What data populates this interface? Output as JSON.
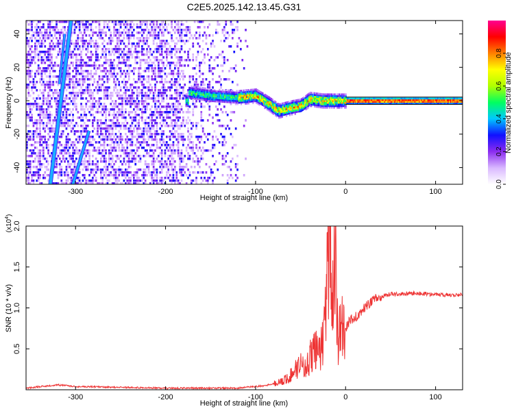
{
  "figure": {
    "title": "C2E5.2025.142.13.45.G31"
  },
  "chart_data": [
    {
      "type": "heatmap",
      "xlabel": "Height of straight line (km)",
      "ylabel": "Frequency (Hz)",
      "xlim": [
        -355,
        130
      ],
      "ylim": [
        -50,
        48
      ],
      "x_ticks": [
        -300,
        -200,
        -100,
        0,
        100
      ],
      "y_ticks": [
        -40,
        -20,
        0,
        20,
        40
      ],
      "colorbar": {
        "label": "Normalized spectral amplitude",
        "range": [
          0,
          1
        ],
        "ticks": [
          0.0,
          0.2,
          0.4,
          0.6,
          0.8
        ],
        "colors": [
          "#ffffff",
          "#d9b8ff",
          "#8b2cf0",
          "#1010ff",
          "#00c8ff",
          "#00ff60",
          "#b0ff00",
          "#ffff00",
          "#ff8000",
          "#ff0000",
          "#ff0090"
        ]
      },
      "features": {
        "diagonal_streaks_x_range_km": [
          -330,
          -290
        ],
        "central_ridge": [
          {
            "x": -175,
            "y": 5
          },
          {
            "x": -150,
            "y": 3
          },
          {
            "x": -120,
            "y": 2
          },
          {
            "x": -100,
            "y": 3
          },
          {
            "x": -85,
            "y": -2
          },
          {
            "x": -75,
            "y": -6
          },
          {
            "x": -60,
            "y": -4
          },
          {
            "x": -50,
            "y": -3
          },
          {
            "x": -40,
            "y": 1
          },
          {
            "x": -25,
            "y": 0
          },
          {
            "x": -10,
            "y": 0
          },
          {
            "x": 0,
            "y": 0
          },
          {
            "x": 130,
            "y": 0
          }
        ]
      }
    },
    {
      "type": "line",
      "xlabel": "Height of straight line (km)",
      "ylabel": "SNR (10 * v/v)",
      "y_exponent_label": "(x10",
      "y_exponent_power": "4",
      "y_exponent_close": ")",
      "xlim": [
        -355,
        130
      ],
      "ylim": [
        0,
        2.0
      ],
      "x_ticks": [
        -300,
        -200,
        -100,
        0,
        100
      ],
      "y_ticks": [
        "0.5",
        "1.0",
        "1.5",
        "2.0"
      ],
      "color": "#ee3333",
      "series_keypoints": [
        {
          "x": -355,
          "y": 0.02
        },
        {
          "x": -320,
          "y": 0.06
        },
        {
          "x": -300,
          "y": 0.04
        },
        {
          "x": -200,
          "y": 0.02
        },
        {
          "x": -120,
          "y": 0.02
        },
        {
          "x": -90,
          "y": 0.05
        },
        {
          "x": -70,
          "y": 0.1
        },
        {
          "x": -60,
          "y": 0.18
        },
        {
          "x": -50,
          "y": 0.35
        },
        {
          "x": -45,
          "y": 0.25
        },
        {
          "x": -35,
          "y": 0.5
        },
        {
          "x": -28,
          "y": 0.45
        },
        {
          "x": -22,
          "y": 0.9
        },
        {
          "x": -18,
          "y": 2.0
        },
        {
          "x": -15,
          "y": 0.8
        },
        {
          "x": -12,
          "y": 1.7
        },
        {
          "x": -8,
          "y": 0.6
        },
        {
          "x": -5,
          "y": 0.8
        },
        {
          "x": 0,
          "y": 0.75
        },
        {
          "x": 5,
          "y": 0.85
        },
        {
          "x": 15,
          "y": 0.92
        },
        {
          "x": 25,
          "y": 1.05
        },
        {
          "x": 35,
          "y": 1.12
        },
        {
          "x": 50,
          "y": 1.17
        },
        {
          "x": 80,
          "y": 1.18
        },
        {
          "x": 100,
          "y": 1.16
        },
        {
          "x": 130,
          "y": 1.16
        }
      ]
    }
  ]
}
